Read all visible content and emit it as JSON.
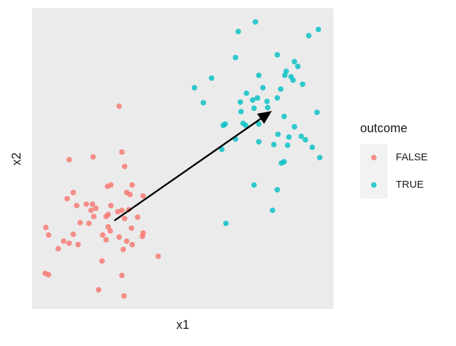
{
  "chart_data": {
    "type": "scatter",
    "x_label": "x1",
    "y_label": "x2",
    "legend_title": "outcome",
    "xlim": [
      0,
      440
    ],
    "ylim": [
      0,
      439
    ],
    "legend": "right",
    "series": [
      {
        "name": "FALSE",
        "color": "#F8766D",
        "x": [
          127,
          131,
          54,
          89,
          135,
          115,
          110,
          146,
          138,
          60,
          143,
          162,
          51,
          79,
          88,
          65,
          115,
          93,
          86,
          131,
          141,
          125,
          90,
          111,
          108,
          154,
          135,
          70,
          83,
          111,
          20,
          145,
          60,
          103,
          24,
          114,
          46,
          54,
          67,
          127,
          162,
          161,
          138,
          108,
          146,
          38,
          133,
          184,
          102,
          19,
          24,
          131,
          97,
          134
        ],
        "y": [
          296,
          229,
          218,
          222,
          208,
          181,
          179,
          181,
          170,
          170,
          167,
          165,
          161,
          153,
          153,
          151,
          151,
          147,
          144,
          144,
          145,
          142,
          135,
          138,
          135,
          134,
          132,
          126,
          125,
          120,
          119,
          118,
          109,
          108,
          108,
          114,
          99,
          96,
          94,
          105,
          111,
          106,
          99,
          101,
          94,
          88,
          87,
          77,
          70,
          52,
          50,
          49,
          28,
          19
        ]
      },
      {
        "name": "TRUE",
        "color": "#00BFC4",
        "x": [
          326,
          301,
          418,
          404,
          297,
          358,
          371,
          383,
          388,
          369,
          378,
          381,
          395,
          331,
          262,
          237,
          363,
          337,
          313,
          329,
          322,
          304,
          250,
          343,
          358,
          324,
          305,
          416,
          344,
          368,
          282,
          279,
          308,
          312,
          331,
          383,
          359,
          393,
          375,
          399,
          331,
          297,
          353,
          277,
          409,
          373,
          364,
          368,
          420,
          324,
          358,
          351,
          283
        ],
        "y": [
          419,
          405,
          408,
          399,
          367,
          371,
          347,
          361,
          354,
          341,
          339,
          334,
          328,
          341,
          337,
          323,
          321,
          323,
          315,
          308,
          305,
          302,
          301,
          303,
          308,
          293,
          288,
          287,
          294,
          281,
          270,
          268,
          271,
          268,
          270,
          266,
          255,
          252,
          251,
          247,
          244,
          248,
          240,
          233,
          236,
          239,
          213,
          215,
          221,
          181,
          174,
          144,
          125
        ]
      }
    ],
    "arrow": {
      "x": [
        120,
        350
      ],
      "y": [
        129,
        289
      ]
    }
  }
}
